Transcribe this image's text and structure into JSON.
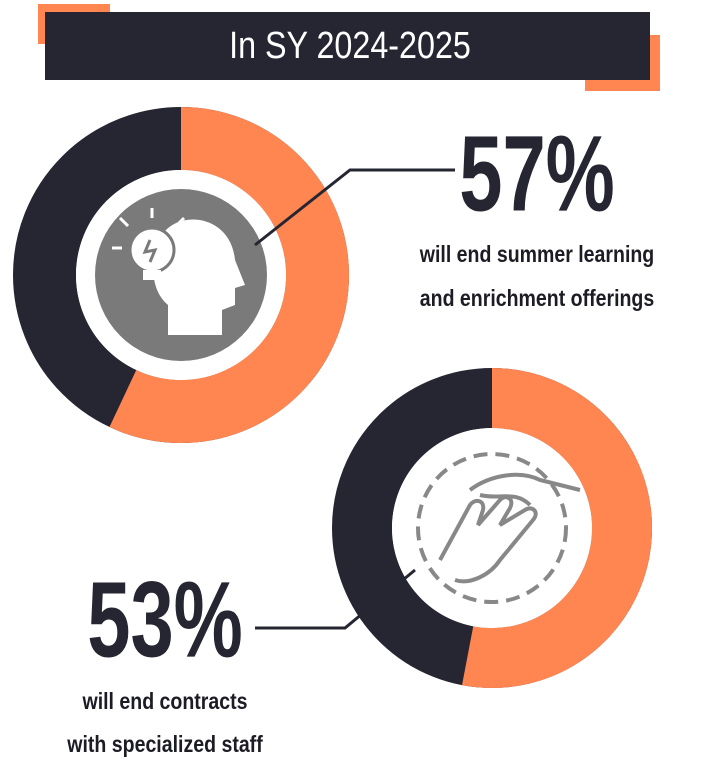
{
  "title": "In SY 2024-2025",
  "chart_data": [
    {
      "type": "donut",
      "values": [
        57
      ],
      "value_labels": [
        "57%"
      ],
      "label_lines": [
        "will end summer learning",
        "and enrichment offerings"
      ],
      "color": "#ff8551",
      "track_color": "#262633"
    },
    {
      "type": "donut",
      "values": [
        53
      ],
      "value_labels": [
        "53%"
      ],
      "label_lines": [
        "will end contracts",
        "with specialized staff"
      ],
      "color": "#ff8551",
      "track_color": "#262633"
    }
  ]
}
